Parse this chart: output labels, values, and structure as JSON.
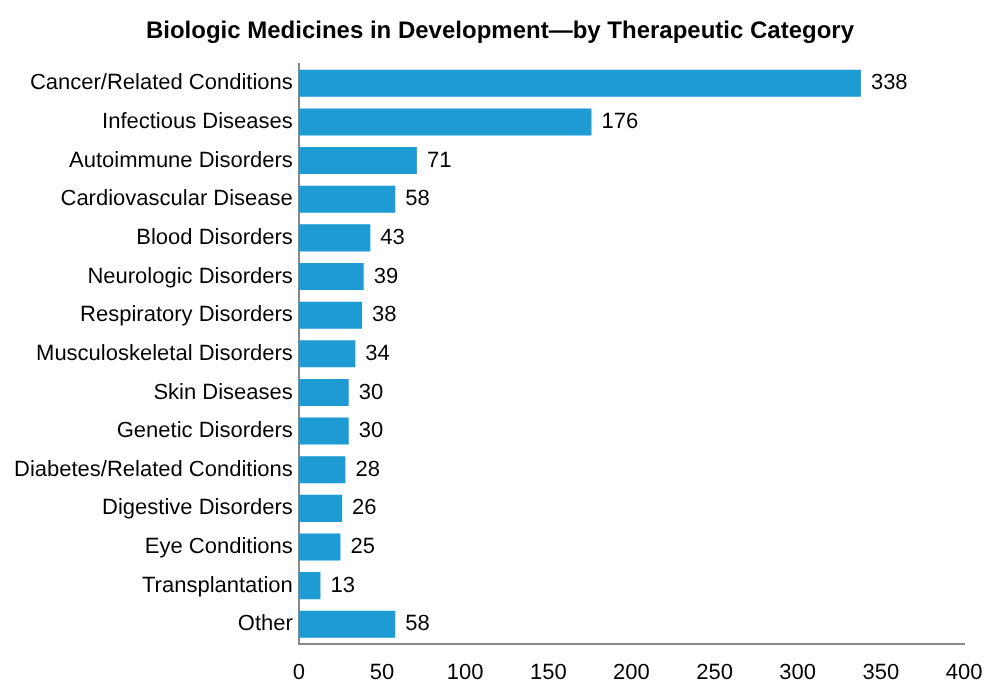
{
  "chart_data": {
    "type": "bar",
    "orientation": "horizontal",
    "title": "Biologic Medicines in Development—by Therapeutic Category",
    "categories": [
      "Cancer/Related Conditions",
      "Infectious Diseases",
      "Autoimmune Disorders",
      "Cardiovascular Disease",
      "Blood Disorders",
      "Neurologic Disorders",
      "Respiratory Disorders",
      "Musculoskeletal Disorders",
      "Skin Diseases",
      "Genetic Disorders",
      "Diabetes/Related Conditions",
      "Digestive Disorders",
      "Eye Conditions",
      "Transplantation",
      "Other"
    ],
    "values": [
      338,
      176,
      71,
      58,
      43,
      39,
      38,
      34,
      30,
      30,
      28,
      26,
      25,
      13,
      58
    ],
    "color": "#1f9bd4",
    "xlim": [
      0,
      400
    ],
    "xticks": [
      0,
      50,
      100,
      150,
      200,
      250,
      300,
      350,
      400
    ],
    "grid": false,
    "data_labels": true
  }
}
